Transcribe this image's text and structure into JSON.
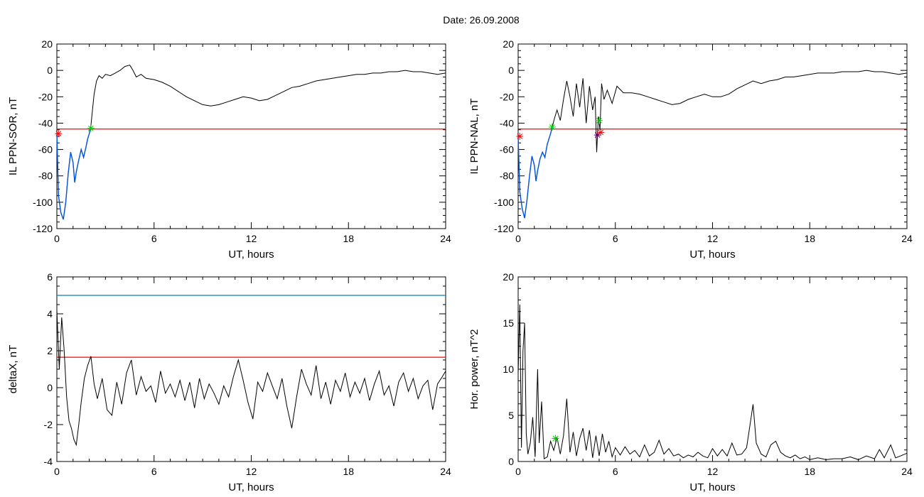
{
  "title": "Date:  26.09.2008",
  "colors": {
    "trace": "#000000",
    "threshold_red": "#ff0000",
    "threshold_cyan": "#0080c0",
    "segment_blue": "#0055dd",
    "marker_green": "#00cc00",
    "marker_red": "#cc0044",
    "marker_magenta": "#660066"
  },
  "chart_data": [
    {
      "type": "line",
      "xlabel": "UT, hours",
      "ylabel": "IL PPN-SOR, nT",
      "xlim": [
        0,
        24
      ],
      "ylim": [
        -120,
        20
      ],
      "xticks": [
        0,
        6,
        12,
        18,
        24
      ],
      "yticks": [
        -120,
        -100,
        -80,
        -60,
        -40,
        -20,
        0,
        20
      ],
      "grid": false,
      "thresholds": [
        {
          "y": -44.5,
          "color": "red"
        }
      ],
      "highlight_segment": {
        "x_from": 0.0,
        "x_to": 2.1,
        "color": "blue"
      },
      "markers": [
        {
          "x": 2.1,
          "y": -44,
          "color": "green",
          "symbol": "*"
        },
        {
          "x": 0.1,
          "y": -48,
          "color": "red",
          "symbol": "*"
        }
      ],
      "series": [
        {
          "x": [
            0,
            0.1,
            0.25,
            0.4,
            0.55,
            0.7,
            0.85,
            1.0,
            1.1,
            1.2,
            1.35,
            1.5,
            1.65,
            1.8,
            1.9,
            2.0,
            2.1,
            2.2,
            2.3,
            2.45,
            2.6,
            2.8,
            3.0,
            3.3,
            3.6,
            3.9,
            4.2,
            4.5,
            4.7,
            4.9,
            5.2,
            5.5,
            6.0,
            6.5,
            7.0,
            7.5,
            8.0,
            8.5,
            9.0,
            9.5,
            10.0,
            10.5,
            11.0,
            11.5,
            12.0,
            12.5,
            13.0,
            13.5,
            14.0,
            14.5,
            15.0,
            15.5,
            16.0,
            16.5,
            17.0,
            17.5,
            18.0,
            18.5,
            19.0,
            19.5,
            20.0,
            20.5,
            21.0,
            21.5,
            22.0,
            22.5,
            23.0,
            23.5,
            24.0
          ],
          "y": [
            -48,
            -95,
            -108,
            -113,
            -100,
            -78,
            -62,
            -70,
            -85,
            -77,
            -68,
            -60,
            -66,
            -58,
            -52,
            -48,
            -42,
            -30,
            -18,
            -8,
            -4,
            -6,
            -3,
            -4,
            -2,
            0,
            3,
            4,
            0,
            -5,
            -3,
            -6,
            -7,
            -9,
            -12,
            -16,
            -20,
            -23,
            -26,
            -27,
            -26,
            -24,
            -22,
            -20,
            -21,
            -23,
            -22,
            -19,
            -16,
            -13,
            -12,
            -10,
            -8,
            -7,
            -6,
            -5,
            -4,
            -3,
            -3,
            -2,
            -2,
            -1,
            -1,
            0,
            -1,
            -1,
            -2,
            -3,
            -2
          ]
        }
      ]
    },
    {
      "type": "line",
      "xlabel": "UT, hours",
      "ylabel": "IL PPN-NAL, nT",
      "xlim": [
        0,
        24
      ],
      "ylim": [
        -120,
        20
      ],
      "xticks": [
        0,
        6,
        12,
        18,
        24
      ],
      "yticks": [
        -120,
        -100,
        -80,
        -60,
        -40,
        -20,
        0,
        20
      ],
      "grid": false,
      "thresholds": [
        {
          "y": -44.5,
          "color": "red"
        }
      ],
      "highlight_segment": {
        "x_from": 0.0,
        "x_to": 2.1,
        "color": "blue"
      },
      "markers": [
        {
          "x": 2.1,
          "y": -43,
          "color": "green",
          "symbol": "*"
        },
        {
          "x": 5.0,
          "y": -38,
          "color": "green",
          "symbol": "*"
        },
        {
          "x": 4.9,
          "y": -49,
          "color": "magenta",
          "symbol": "*"
        },
        {
          "x": 5.1,
          "y": -47,
          "color": "red",
          "symbol": "*"
        },
        {
          "x": 0.1,
          "y": -50,
          "color": "red",
          "symbol": "*"
        }
      ],
      "series": [
        {
          "x": [
            0,
            0.1,
            0.25,
            0.4,
            0.55,
            0.7,
            0.85,
            1.0,
            1.1,
            1.2,
            1.35,
            1.5,
            1.65,
            1.8,
            1.9,
            2.0,
            2.1,
            2.25,
            2.4,
            2.6,
            2.8,
            3.0,
            3.2,
            3.4,
            3.6,
            3.8,
            4.0,
            4.2,
            4.4,
            4.6,
            4.75,
            4.85,
            4.95,
            5.05,
            5.15,
            5.3,
            5.5,
            5.8,
            6.1,
            6.5,
            7.0,
            7.5,
            8.0,
            8.5,
            9.0,
            9.5,
            10.0,
            10.5,
            11.0,
            11.5,
            12.0,
            12.5,
            13.0,
            13.5,
            14.0,
            14.5,
            15.0,
            15.5,
            16.0,
            16.5,
            17.0,
            17.5,
            18.0,
            18.5,
            19.0,
            19.5,
            20.0,
            20.5,
            21.0,
            21.5,
            22.0,
            22.5,
            23.0,
            23.5,
            24.0
          ],
          "y": [
            -50,
            -92,
            -105,
            -112,
            -98,
            -80,
            -65,
            -72,
            -84,
            -76,
            -67,
            -62,
            -66,
            -56,
            -52,
            -48,
            -43,
            -36,
            -30,
            -38,
            -22,
            -8,
            -20,
            -35,
            -10,
            -28,
            -6,
            -40,
            -12,
            -30,
            -20,
            -62,
            -35,
            -45,
            -10,
            -22,
            -15,
            -25,
            -12,
            -17,
            -17,
            -18,
            -20,
            -22,
            -24,
            -26,
            -25,
            -22,
            -20,
            -18,
            -20,
            -20,
            -18,
            -14,
            -11,
            -8,
            -10,
            -8,
            -7,
            -5,
            -5,
            -4,
            -3,
            -2,
            -2,
            -2,
            -1,
            -1,
            -1,
            0,
            -1,
            -1,
            -2,
            -3,
            -2
          ]
        }
      ]
    },
    {
      "type": "line",
      "xlabel": "UT, hours",
      "ylabel": "deltaX, nT",
      "xlim": [
        0,
        24
      ],
      "ylim": [
        -4,
        6
      ],
      "xticks": [
        0,
        6,
        12,
        18,
        24
      ],
      "yticks": [
        -4,
        -2,
        0,
        2,
        4,
        6
      ],
      "grid": false,
      "thresholds": [
        {
          "y": 5.0,
          "color": "cyan"
        },
        {
          "y": 1.65,
          "color": "red"
        }
      ],
      "series": [
        {
          "x": [
            0,
            0.15,
            0.3,
            0.45,
            0.6,
            0.75,
            0.9,
            1.05,
            1.2,
            1.35,
            1.5,
            1.7,
            1.9,
            2.1,
            2.3,
            2.5,
            2.8,
            3.1,
            3.4,
            3.7,
            4.0,
            4.3,
            4.6,
            4.9,
            5.2,
            5.5,
            5.8,
            6.1,
            6.4,
            6.7,
            7.0,
            7.3,
            7.6,
            7.9,
            8.2,
            8.5,
            8.8,
            9.1,
            9.4,
            9.7,
            10.0,
            10.3,
            10.6,
            10.9,
            11.2,
            11.5,
            11.8,
            12.1,
            12.4,
            12.7,
            13.0,
            13.3,
            13.6,
            13.9,
            14.2,
            14.5,
            14.8,
            15.1,
            15.4,
            15.7,
            16.0,
            16.3,
            16.6,
            16.9,
            17.2,
            17.5,
            17.8,
            18.1,
            18.4,
            18.7,
            19.0,
            19.3,
            19.6,
            19.9,
            20.2,
            20.5,
            20.8,
            21.1,
            21.4,
            21.7,
            22.0,
            22.3,
            22.6,
            22.9,
            23.2,
            23.5,
            23.8,
            24.0
          ],
          "y": [
            4.2,
            1.0,
            3.8,
            2.0,
            -0.5,
            -1.8,
            -2.2,
            -2.8,
            -3.1,
            -2.0,
            -0.8,
            0.5,
            1.2,
            1.7,
            0.2,
            -0.6,
            0.5,
            -1.2,
            -1.5,
            0.3,
            -0.9,
            0.8,
            1.5,
            -0.4,
            0.6,
            -0.2,
            0.1,
            -0.8,
            0.9,
            -0.3,
            0.2,
            -0.5,
            0.4,
            -0.7,
            0.3,
            -1.1,
            0.5,
            -0.6,
            0.2,
            -0.3,
            -0.9,
            0.1,
            -0.5,
            0.6,
            1.5,
            0.4,
            -0.8,
            -1.7,
            0.3,
            -0.2,
            0.8,
            0.1,
            -0.6,
            0.5,
            -1.0,
            -2.2,
            -0.5,
            1.0,
            0.2,
            -0.4,
            1.2,
            -0.6,
            0.3,
            -0.9,
            0.4,
            -0.2,
            0.8,
            -0.5,
            0.3,
            -0.3,
            0.5,
            -0.7,
            0.2,
            0.9,
            -0.4,
            0.1,
            -1.0,
            0.3,
            0.8,
            -0.2,
            0.5,
            -0.6,
            0.1,
            0.4,
            -1.2,
            0.2,
            0.6,
            0.9
          ]
        }
      ]
    },
    {
      "type": "line",
      "xlabel": "UT, hours",
      "ylabel": "Hor. power, nT^2",
      "xlim": [
        0,
        24
      ],
      "ylim": [
        0,
        20
      ],
      "xticks": [
        0,
        6,
        12,
        18,
        24
      ],
      "yticks": [
        0,
        5,
        10,
        15,
        20
      ],
      "grid": false,
      "markers": [
        {
          "x": 2.3,
          "y": 2.5,
          "color": "green",
          "symbol": "*"
        }
      ],
      "series": [
        {
          "x": [
            0,
            0.1,
            0.2,
            0.3,
            0.4,
            0.5,
            0.6,
            0.75,
            0.9,
            1.05,
            1.2,
            1.3,
            1.45,
            1.6,
            1.8,
            2.0,
            2.2,
            2.4,
            2.6,
            2.8,
            3.0,
            3.2,
            3.4,
            3.6,
            3.8,
            4.0,
            4.2,
            4.4,
            4.6,
            4.8,
            5.0,
            5.2,
            5.4,
            5.6,
            5.8,
            6.0,
            6.3,
            6.6,
            6.9,
            7.2,
            7.5,
            7.8,
            8.1,
            8.4,
            8.7,
            9.0,
            9.3,
            9.6,
            9.9,
            10.2,
            10.5,
            10.8,
            11.1,
            11.4,
            11.7,
            12.0,
            12.3,
            12.6,
            12.9,
            13.2,
            13.5,
            13.8,
            14.1,
            14.3,
            14.5,
            14.7,
            15.0,
            15.3,
            15.6,
            15.9,
            16.2,
            16.5,
            16.8,
            17.1,
            17.4,
            17.7,
            18.0,
            18.5,
            19.0,
            19.5,
            20.0,
            20.5,
            21.0,
            21.5,
            22.0,
            22.3,
            22.6,
            23.0,
            23.3,
            23.6,
            24.0
          ],
          "y": [
            9.5,
            17.0,
            1.5,
            12.0,
            15.0,
            3.0,
            0.8,
            2.0,
            4.8,
            0.5,
            10.0,
            2.0,
            6.5,
            0.3,
            0.5,
            2.2,
            1.2,
            2.6,
            0.8,
            2.8,
            6.8,
            1.0,
            3.2,
            0.6,
            2.5,
            3.6,
            1.2,
            3.4,
            0.4,
            2.8,
            0.6,
            3.0,
            1.0,
            2.2,
            0.5,
            1.5,
            0.7,
            1.6,
            0.8,
            1.2,
            0.5,
            1.8,
            0.6,
            1.0,
            2.3,
            0.8,
            1.4,
            0.6,
            0.8,
            0.4,
            0.7,
            0.5,
            1.0,
            0.6,
            0.4,
            1.4,
            0.6,
            1.3,
            0.6,
            2.0,
            0.7,
            0.8,
            1.5,
            3.8,
            6.2,
            2.0,
            0.8,
            0.5,
            1.8,
            2.2,
            1.0,
            0.6,
            0.4,
            0.7,
            0.3,
            0.5,
            0.2,
            0.4,
            0.2,
            0.3,
            0.3,
            0.5,
            0.2,
            0.6,
            0.3,
            1.3,
            0.4,
            1.8,
            0.4,
            0.6,
            0.9
          ]
        }
      ]
    }
  ]
}
